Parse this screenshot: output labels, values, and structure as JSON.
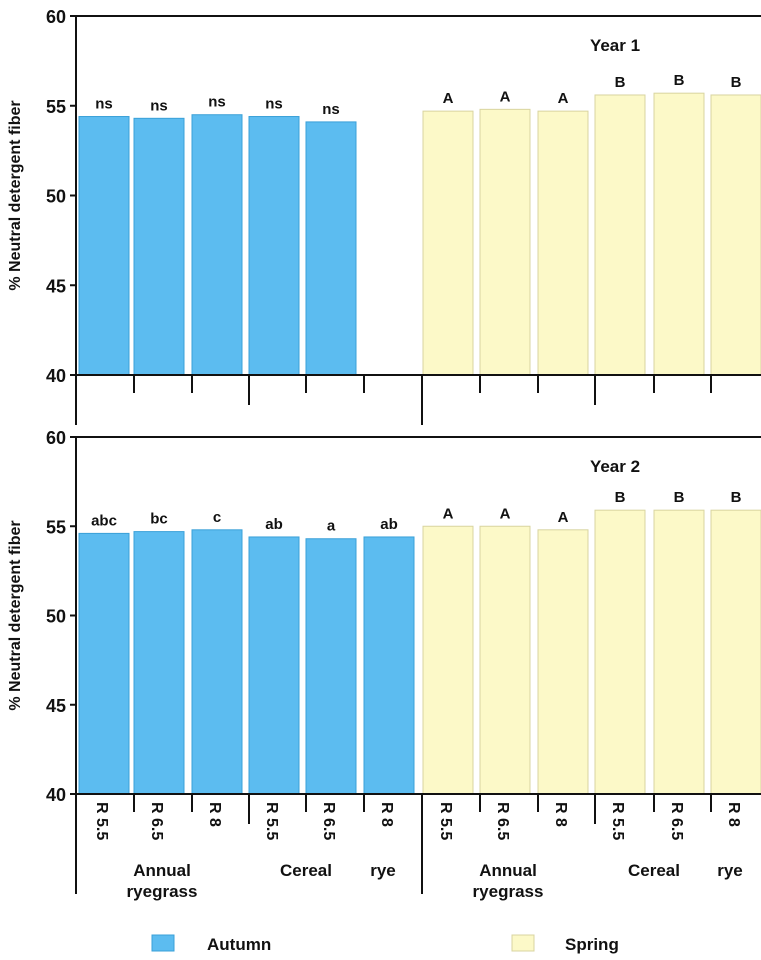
{
  "chart_data": {
    "type": "bar",
    "ylabel": "% Neutral detergent fiber",
    "ylim": [
      40,
      60
    ],
    "yticks": [
      "40",
      "45",
      "50",
      "55",
      "60"
    ],
    "categories": [
      "R 5.5",
      "R 6.5",
      "R 8",
      "R 5.5",
      "R 6.5",
      "R 8",
      "R 5.5",
      "R 6.5",
      "R 8",
      "R 5.5",
      "R 6.5",
      "R 8"
    ],
    "group_labels": [
      {
        "line1": "Annual",
        "line2": "ryegrass"
      },
      {
        "line1": "Cereal",
        "line2": ""
      },
      {
        "line1": "rye",
        "line2": ""
      },
      {
        "line1": "Annual",
        "line2": "ryegrass"
      },
      {
        "line1": "Cereal",
        "line2": ""
      },
      {
        "line1": "rye",
        "line2": ""
      }
    ],
    "season_colors": [
      "#5cbcf0",
      "#fcf9c8"
    ],
    "legend": {
      "placement": "bottom",
      "items": [
        {
          "label": "Autumn",
          "color": "#5cbcf0"
        },
        {
          "label": "Spring",
          "color": "#fcf9c8"
        }
      ]
    },
    "panels": [
      {
        "title": "Year 1",
        "series": [
          {
            "name": "Autumn",
            "values": [
              54.4,
              54.3,
              54.5,
              54.4,
              54.1,
              null
            ],
            "labels": [
              "ns",
              "ns",
              "ns",
              "ns",
              "ns",
              ""
            ]
          },
          {
            "name": "Spring",
            "values": [
              54.7,
              54.8,
              54.7,
              55.6,
              55.7,
              55.6
            ],
            "labels": [
              "A",
              "A",
              "A",
              "B",
              "B",
              "B"
            ]
          }
        ]
      },
      {
        "title": "Year 2",
        "series": [
          {
            "name": "Autumn",
            "values": [
              54.6,
              54.7,
              54.8,
              54.4,
              54.3,
              54.4
            ],
            "labels": [
              "abc",
              "bc",
              "c",
              "ab",
              "a",
              "ab"
            ]
          },
          {
            "name": "Spring",
            "values": [
              55.0,
              55.0,
              54.8,
              55.9,
              55.9,
              55.9
            ],
            "labels": [
              "A",
              "A",
              "A",
              "B",
              "B",
              "B"
            ]
          }
        ]
      }
    ]
  }
}
